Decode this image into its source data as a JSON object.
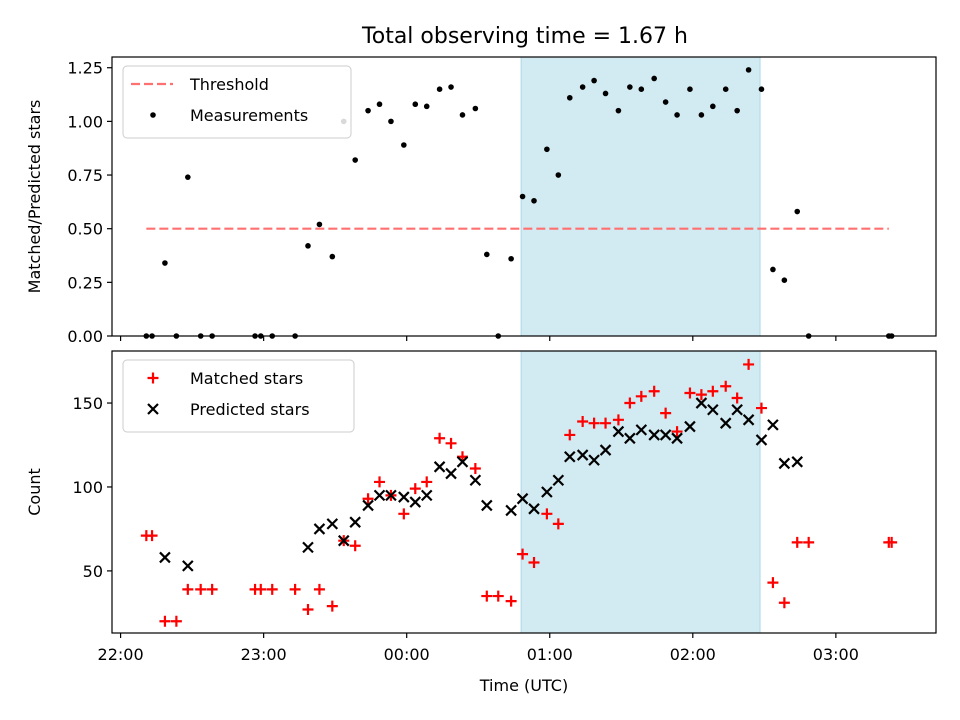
{
  "figure": {
    "title": "Total observing time = 1.67 h"
  },
  "shaded_color": "#add8e6",
  "chart_data": [
    {
      "type": "scatter",
      "ylabel": "Matched/Predicted stars",
      "xlim": [
        -0.06,
        5.7
      ],
      "ylim": [
        0,
        1.3
      ],
      "yticks": [
        0.0,
        0.25,
        0.5,
        0.75,
        1.0,
        1.25
      ],
      "ytick_labels": [
        "0.00",
        "0.25",
        "0.50",
        "0.75",
        "1.00",
        "1.25"
      ],
      "xticks": [
        0,
        1,
        2,
        3,
        4,
        5
      ],
      "shaded_region": [
        2.8,
        4.47
      ],
      "grid": false,
      "legend_position": "upper-left",
      "threshold": {
        "name": "Threshold",
        "value": 0.5,
        "x_range": [
          0.18,
          5.37
        ],
        "color": "#ff7070",
        "style": "dashed"
      },
      "series": [
        {
          "name": "Measurements",
          "marker": "dot",
          "color": "#000000",
          "points": [
            [
              0.18,
              0.0
            ],
            [
              0.22,
              0.0
            ],
            [
              0.31,
              0.34
            ],
            [
              0.39,
              0.0
            ],
            [
              0.47,
              0.74
            ],
            [
              0.56,
              0.0
            ],
            [
              0.64,
              0.0
            ],
            [
              0.94,
              0.0
            ],
            [
              0.98,
              0.0
            ],
            [
              1.06,
              0.0
            ],
            [
              1.22,
              0.0
            ],
            [
              1.31,
              0.42
            ],
            [
              1.39,
              0.52
            ],
            [
              1.48,
              0.37
            ],
            [
              1.56,
              1.0
            ],
            [
              1.64,
              0.82
            ],
            [
              1.73,
              1.05
            ],
            [
              1.81,
              1.08
            ],
            [
              1.89,
              1.0
            ],
            [
              1.98,
              0.89
            ],
            [
              2.06,
              1.08
            ],
            [
              2.14,
              1.07
            ],
            [
              2.23,
              1.15
            ],
            [
              2.31,
              1.16
            ],
            [
              2.39,
              1.03
            ],
            [
              2.48,
              1.06
            ],
            [
              2.56,
              0.38
            ],
            [
              2.64,
              0.0
            ],
            [
              2.73,
              0.36
            ],
            [
              2.81,
              0.65
            ],
            [
              2.89,
              0.63
            ],
            [
              2.98,
              0.87
            ],
            [
              3.06,
              0.75
            ],
            [
              3.14,
              1.11
            ],
            [
              3.23,
              1.16
            ],
            [
              3.31,
              1.19
            ],
            [
              3.39,
              1.13
            ],
            [
              3.48,
              1.05
            ],
            [
              3.56,
              1.16
            ],
            [
              3.64,
              1.15
            ],
            [
              3.73,
              1.2
            ],
            [
              3.81,
              1.09
            ],
            [
              3.89,
              1.03
            ],
            [
              3.98,
              1.15
            ],
            [
              4.06,
              1.03
            ],
            [
              4.14,
              1.07
            ],
            [
              4.23,
              1.15
            ],
            [
              4.31,
              1.05
            ],
            [
              4.39,
              1.24
            ],
            [
              4.48,
              1.15
            ],
            [
              4.56,
              0.31
            ],
            [
              4.64,
              0.26
            ],
            [
              4.73,
              0.58
            ],
            [
              4.81,
              0.0
            ],
            [
              5.37,
              0.0
            ],
            [
              5.39,
              0.0
            ]
          ]
        }
      ]
    },
    {
      "type": "scatter",
      "xlabel": "Time (UTC)",
      "ylabel": "Count",
      "xlim": [
        -0.06,
        5.7
      ],
      "ylim": [
        13,
        181
      ],
      "yticks": [
        50,
        100,
        150
      ],
      "ytick_labels": [
        "50",
        "100",
        "150"
      ],
      "xticks": [
        0,
        1,
        2,
        3,
        4,
        5
      ],
      "xtick_labels": [
        "22:00",
        "23:00",
        "00:00",
        "01:00",
        "02:00",
        "03:00"
      ],
      "shaded_region": [
        2.8,
        4.47
      ],
      "grid": false,
      "legend_position": "upper-left",
      "series": [
        {
          "name": "Matched stars",
          "marker": "plus",
          "color": "#ff0000",
          "points": [
            [
              0.18,
              71
            ],
            [
              0.22,
              71
            ],
            [
              0.31,
              20
            ],
            [
              0.39,
              20
            ],
            [
              0.47,
              39
            ],
            [
              0.56,
              39
            ],
            [
              0.64,
              39
            ],
            [
              0.94,
              39
            ],
            [
              0.98,
              39
            ],
            [
              1.06,
              39
            ],
            [
              1.22,
              39
            ],
            [
              1.31,
              27
            ],
            [
              1.39,
              39
            ],
            [
              1.48,
              29
            ],
            [
              1.56,
              68
            ],
            [
              1.64,
              65
            ],
            [
              1.73,
              93
            ],
            [
              1.81,
              103
            ],
            [
              1.89,
              95
            ],
            [
              1.98,
              84
            ],
            [
              2.06,
              99
            ],
            [
              2.14,
              103
            ],
            [
              2.23,
              129
            ],
            [
              2.31,
              126
            ],
            [
              2.39,
              118
            ],
            [
              2.48,
              111
            ],
            [
              2.56,
              35
            ],
            [
              2.64,
              35
            ],
            [
              2.73,
              32
            ],
            [
              2.81,
              60
            ],
            [
              2.89,
              55
            ],
            [
              2.98,
              84
            ],
            [
              3.06,
              78
            ],
            [
              3.14,
              131
            ],
            [
              3.23,
              139
            ],
            [
              3.31,
              138
            ],
            [
              3.39,
              138
            ],
            [
              3.48,
              140
            ],
            [
              3.56,
              150
            ],
            [
              3.64,
              154
            ],
            [
              3.73,
              157
            ],
            [
              3.81,
              144
            ],
            [
              3.89,
              133
            ],
            [
              3.98,
              156
            ],
            [
              4.06,
              155
            ],
            [
              4.14,
              157
            ],
            [
              4.23,
              160
            ],
            [
              4.31,
              153
            ],
            [
              4.39,
              173
            ],
            [
              4.48,
              147
            ],
            [
              4.56,
              43
            ],
            [
              4.64,
              31
            ],
            [
              4.73,
              67
            ],
            [
              4.81,
              67
            ],
            [
              5.37,
              67
            ],
            [
              5.39,
              67
            ]
          ]
        },
        {
          "name": "Predicted stars",
          "marker": "x",
          "color": "#000000",
          "points": [
            [
              0.31,
              58
            ],
            [
              0.47,
              53
            ],
            [
              1.31,
              64
            ],
            [
              1.39,
              75
            ],
            [
              1.48,
              78
            ],
            [
              1.56,
              68
            ],
            [
              1.64,
              79
            ],
            [
              1.73,
              89
            ],
            [
              1.81,
              95
            ],
            [
              1.89,
              95
            ],
            [
              1.98,
              94
            ],
            [
              2.06,
              91
            ],
            [
              2.14,
              95
            ],
            [
              2.23,
              112
            ],
            [
              2.31,
              108
            ],
            [
              2.39,
              115
            ],
            [
              2.48,
              104
            ],
            [
              2.56,
              89
            ],
            [
              2.73,
              86
            ],
            [
              2.81,
              93
            ],
            [
              2.89,
              87
            ],
            [
              2.98,
              97
            ],
            [
              3.06,
              104
            ],
            [
              3.14,
              118
            ],
            [
              3.23,
              119
            ],
            [
              3.31,
              116
            ],
            [
              3.39,
              122
            ],
            [
              3.48,
              133
            ],
            [
              3.56,
              129
            ],
            [
              3.64,
              134
            ],
            [
              3.73,
              131
            ],
            [
              3.81,
              131
            ],
            [
              3.89,
              129
            ],
            [
              3.98,
              136
            ],
            [
              4.06,
              150
            ],
            [
              4.14,
              146
            ],
            [
              4.23,
              138
            ],
            [
              4.31,
              146
            ],
            [
              4.39,
              140
            ],
            [
              4.48,
              128
            ],
            [
              4.56,
              137
            ],
            [
              4.64,
              114
            ],
            [
              4.73,
              115
            ]
          ]
        }
      ]
    }
  ]
}
